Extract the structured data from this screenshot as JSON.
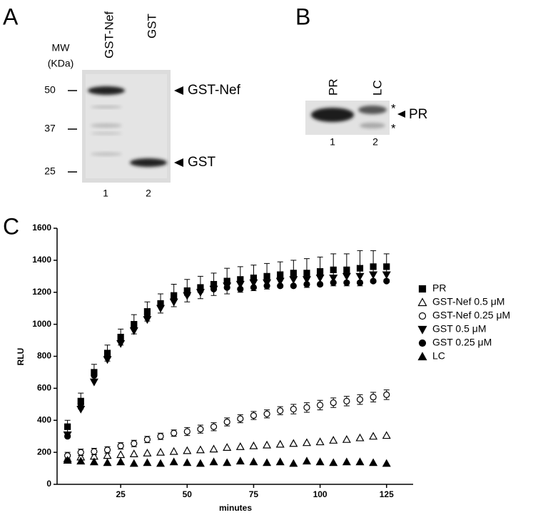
{
  "panel_a": {
    "letter": "A",
    "mw_label": "MW",
    "unit_label": "(KDa)",
    "lanes": [
      "GST-Nef",
      "GST"
    ],
    "markers": [
      "50",
      "37",
      "25"
    ],
    "band_labels": [
      "GST-Nef",
      "GST"
    ],
    "lane_numbers": [
      "1",
      "2"
    ]
  },
  "panel_b": {
    "letter": "B",
    "lanes": [
      "PR",
      "LC"
    ],
    "asterisks": [
      "*",
      "*"
    ],
    "band_label": "PR",
    "lane_numbers": [
      "1",
      "2"
    ]
  },
  "panel_c": {
    "letter": "C"
  },
  "chart_data": {
    "type": "scatter",
    "x_label": "minutes",
    "y_label": "RLU",
    "xlim": [
      0,
      135
    ],
    "ylim": [
      0,
      1600
    ],
    "xticks": [
      25,
      50,
      75,
      100,
      125
    ],
    "yticks": [
      0,
      200,
      400,
      600,
      800,
      1000,
      1200,
      1400,
      1600
    ],
    "x": [
      5,
      10,
      15,
      20,
      25,
      30,
      35,
      40,
      45,
      50,
      55,
      60,
      65,
      70,
      75,
      80,
      85,
      90,
      95,
      100,
      105,
      110,
      115,
      120,
      125
    ],
    "legend": "right",
    "series": [
      {
        "name": "PR",
        "color": "#000000",
        "marker": "square",
        "filled": true,
        "values": [
          360,
          520,
          700,
          820,
          920,
          1000,
          1080,
          1130,
          1180,
          1210,
          1230,
          1250,
          1270,
          1280,
          1290,
          1300,
          1310,
          1320,
          1320,
          1330,
          1340,
          1340,
          1350,
          1360,
          1360
        ],
        "errors": [
          40,
          50,
          50,
          50,
          50,
          60,
          60,
          60,
          70,
          70,
          70,
          70,
          80,
          80,
          80,
          80,
          80,
          80,
          90,
          90,
          100,
          100,
          110,
          100,
          80
        ]
      },
      {
        "name": "GST-Nef 0.5 μM",
        "color": "#000000",
        "marker": "triangle",
        "filled": false,
        "values": [
          160,
          170,
          175,
          180,
          185,
          190,
          195,
          200,
          205,
          210,
          215,
          220,
          230,
          235,
          240,
          245,
          250,
          255,
          260,
          265,
          275,
          280,
          290,
          300,
          305
        ]
      },
      {
        "name": "GST-Nef 0.25 μM",
        "color": "#000000",
        "marker": "circle",
        "filled": false,
        "values": [
          180,
          200,
          205,
          215,
          240,
          255,
          280,
          300,
          320,
          330,
          345,
          360,
          390,
          410,
          430,
          440,
          460,
          470,
          480,
          495,
          510,
          520,
          530,
          545,
          560
        ],
        "errors": [
          20,
          20,
          20,
          20,
          20,
          20,
          20,
          20,
          20,
          25,
          25,
          25,
          25,
          25,
          25,
          25,
          25,
          30,
          30,
          30,
          30,
          30,
          30,
          30,
          30
        ]
      },
      {
        "name": "GST 0.5 μM",
        "color": "#000000",
        "marker": "triangle-down",
        "filled": true,
        "values": [
          310,
          470,
          640,
          780,
          880,
          960,
          1030,
          1100,
          1140,
          1180,
          1200,
          1220,
          1240,
          1250,
          1260,
          1260,
          1270,
          1280,
          1280,
          1290,
          1290,
          1300,
          1300,
          1310,
          1310
        ]
      },
      {
        "name": "GST 0.25 μM",
        "color": "#000000",
        "marker": "circle",
        "filled": true,
        "values": [
          300,
          500,
          680,
          800,
          900,
          980,
          1060,
          1120,
          1160,
          1190,
          1210,
          1220,
          1230,
          1220,
          1230,
          1240,
          1240,
          1240,
          1250,
          1250,
          1260,
          1260,
          1260,
          1270,
          1270
        ]
      },
      {
        "name": "LC",
        "color": "#000000",
        "marker": "triangle",
        "filled": true,
        "values": [
          150,
          145,
          140,
          135,
          140,
          130,
          135,
          130,
          140,
          135,
          130,
          140,
          135,
          145,
          140,
          135,
          140,
          130,
          145,
          140,
          135,
          140,
          140,
          135,
          130
        ]
      }
    ]
  }
}
